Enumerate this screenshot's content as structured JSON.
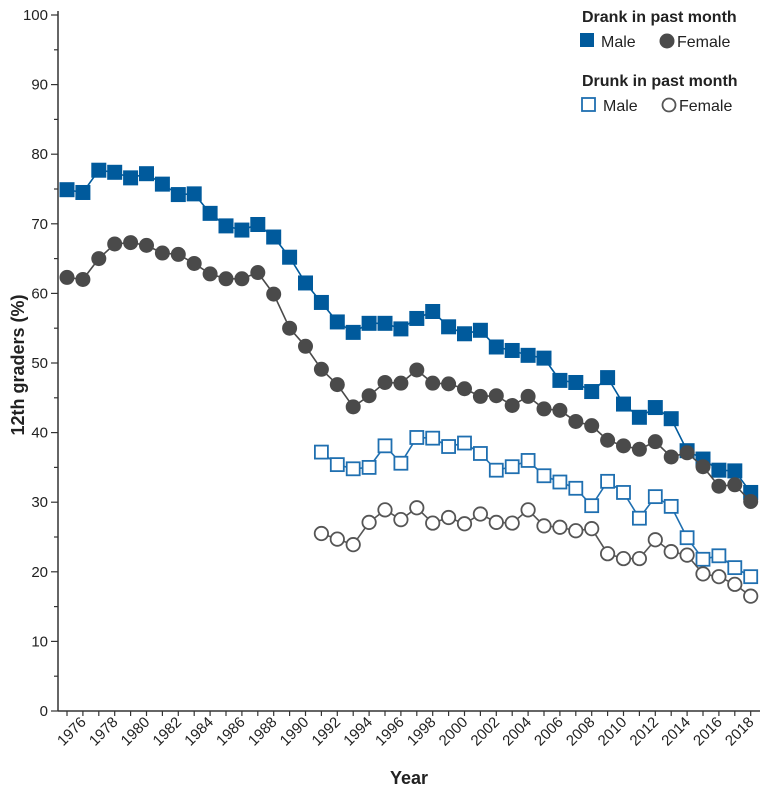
{
  "chart_data": {
    "type": "line",
    "title": "",
    "xlabel": "Year",
    "ylabel": "12th graders (%)",
    "ylim": [
      0,
      100
    ],
    "xlim": [
      1975,
      2018
    ],
    "yticks": [
      0,
      10,
      20,
      30,
      40,
      50,
      60,
      70,
      80,
      90,
      100
    ],
    "xticks": [
      1976,
      1978,
      1980,
      1982,
      1984,
      1986,
      1988,
      1990,
      1992,
      1994,
      1996,
      1998,
      2000,
      2002,
      2004,
      2006,
      2008,
      2010,
      2012,
      2014,
      2016,
      2018
    ],
    "grid": false,
    "legend_placement": "top-right",
    "legend_groups": [
      {
        "title": "Drank in past month",
        "entries": [
          "Male",
          "Female"
        ]
      },
      {
        "title": "Drunk in past month",
        "entries": [
          "Male",
          "Female"
        ]
      }
    ],
    "series": [
      {
        "name": "Drank in past month - Male",
        "marker": "filled-square",
        "color": "#005a9c",
        "start_year": 1975,
        "values": [
          74.9,
          74.5,
          77.7,
          77.4,
          76.6,
          77.2,
          75.7,
          74.2,
          74.3,
          71.5,
          69.7,
          69.1,
          69.9,
          68.1,
          65.2,
          61.5,
          58.7,
          55.9,
          54.4,
          55.7,
          55.7,
          54.9,
          56.4,
          57.4,
          55.2,
          54.2,
          54.7,
          52.3,
          51.8,
          51.1,
          50.7,
          47.5,
          47.2,
          45.9,
          47.9,
          44.1,
          42.2,
          43.6,
          42.0,
          37.4,
          36.2,
          34.6,
          34.5,
          31.4
        ]
      },
      {
        "name": "Drank in past month - Female",
        "marker": "filled-circle",
        "color": "#4a4a4a",
        "start_year": 1975,
        "values": [
          62.3,
          62.0,
          65.0,
          67.1,
          67.3,
          66.9,
          65.8,
          65.6,
          64.3,
          62.8,
          62.1,
          62.1,
          63.0,
          59.9,
          55.0,
          52.4,
          49.1,
          46.9,
          43.7,
          45.3,
          47.2,
          47.1,
          49.0,
          47.1,
          47.0,
          46.3,
          45.2,
          45.3,
          43.9,
          45.2,
          43.4,
          43.2,
          41.6,
          41.0,
          38.9,
          38.1,
          37.6,
          38.7,
          36.5,
          37.1,
          35.1,
          32.3,
          32.5,
          30.1
        ]
      },
      {
        "name": "Drunk in past month - Male",
        "marker": "open-square",
        "color": "#1f6fb0",
        "start_year": 1991,
        "values": [
          37.2,
          35.4,
          34.8,
          35.0,
          38.1,
          35.6,
          39.3,
          39.2,
          38.0,
          38.5,
          37.0,
          34.6,
          35.1,
          36.0,
          33.8,
          32.9,
          32.0,
          29.5,
          33.0,
          31.4,
          27.7,
          30.8,
          29.4,
          24.9,
          21.8,
          22.3,
          20.6,
          19.3
        ]
      },
      {
        "name": "Drunk in past month - Female",
        "marker": "open-circle",
        "color": "#555555",
        "start_year": 1991,
        "values": [
          25.5,
          24.7,
          23.9,
          27.1,
          28.9,
          27.5,
          29.2,
          27.0,
          27.8,
          26.9,
          28.3,
          27.1,
          27.0,
          28.9,
          26.6,
          26.4,
          25.9,
          26.2,
          22.6,
          21.9,
          21.9,
          24.6,
          22.9,
          22.4,
          19.7,
          19.3,
          18.2,
          16.5
        ]
      }
    ]
  }
}
